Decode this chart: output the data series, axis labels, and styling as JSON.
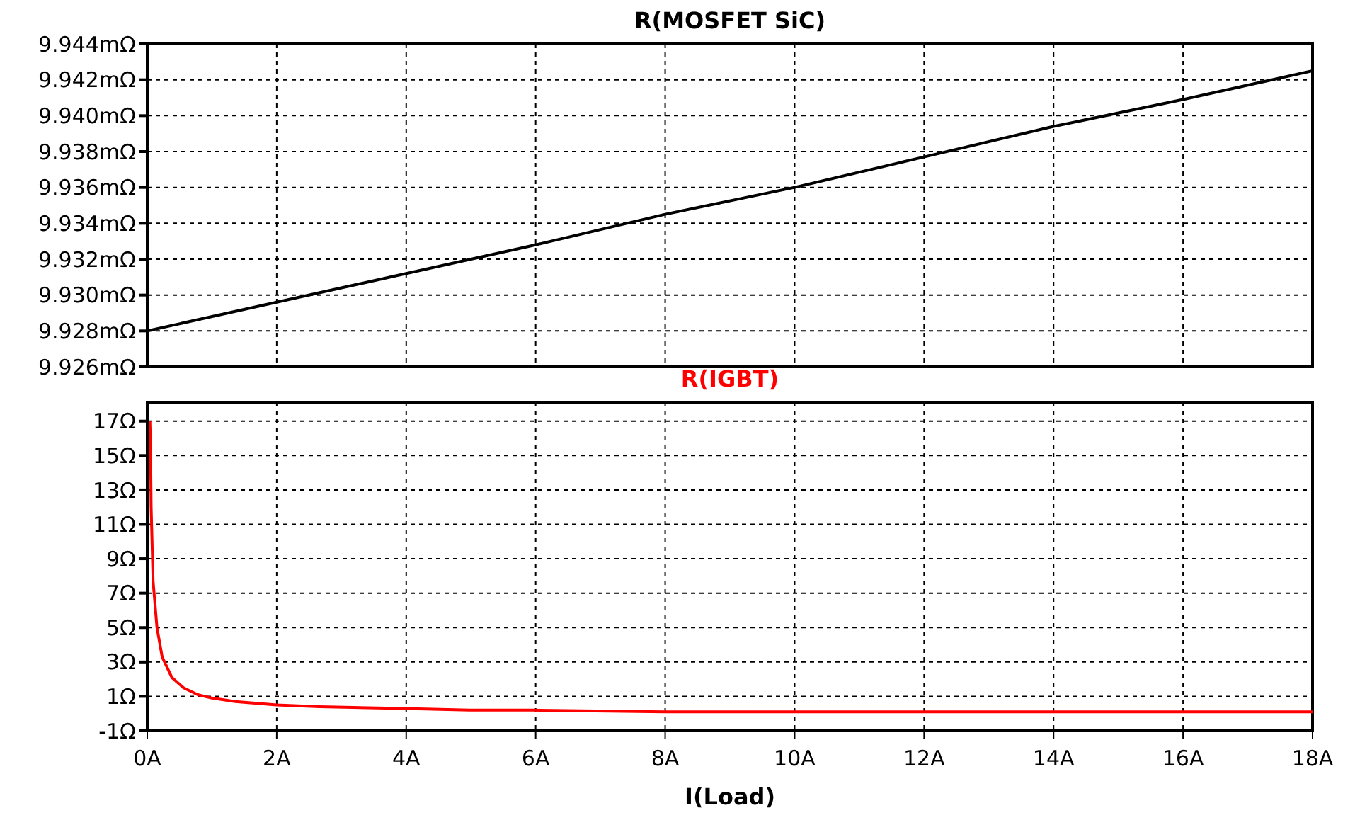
{
  "chart_data": [
    {
      "type": "line",
      "x": [
        0,
        2,
        4,
        6,
        8,
        10,
        12,
        14,
        16,
        18
      ],
      "series": [
        {
          "name": "R(MOSFET SiC)",
          "color": "#000000",
          "values": [
            9.928,
            9.9296,
            9.9312,
            9.9328,
            9.9345,
            9.936,
            9.9377,
            9.9394,
            9.9409,
            9.9425
          ]
        }
      ],
      "xlim": [
        0,
        18
      ],
      "xticks": [
        {
          "value": 0,
          "label": null
        },
        {
          "value": 2,
          "label": null
        },
        {
          "value": 4,
          "label": null
        },
        {
          "value": 6,
          "label": null
        },
        {
          "value": 8,
          "label": null
        },
        {
          "value": 10,
          "label": null
        },
        {
          "value": 12,
          "label": null
        },
        {
          "value": 14,
          "label": null
        },
        {
          "value": 16,
          "label": null
        },
        {
          "value": 18,
          "label": null
        }
      ],
      "ylim": [
        9.926,
        9.944
      ],
      "yticks": [
        {
          "value": 9.926,
          "label": "9.926mΩ"
        },
        {
          "value": 9.928,
          "label": "9.928mΩ"
        },
        {
          "value": 9.93,
          "label": "9.930mΩ"
        },
        {
          "value": 9.932,
          "label": "9.932mΩ"
        },
        {
          "value": 9.934,
          "label": "9.934mΩ"
        },
        {
          "value": 9.936,
          "label": "9.936mΩ"
        },
        {
          "value": 9.938,
          "label": "9.938mΩ"
        },
        {
          "value": 9.94,
          "label": "9.940mΩ"
        },
        {
          "value": 9.942,
          "label": "9.942mΩ"
        },
        {
          "value": 9.944,
          "label": "9.944mΩ"
        }
      ],
      "grid": true,
      "legend": "top",
      "tick_labels": "y"
    },
    {
      "type": "line",
      "x": [
        0.04,
        0.05,
        0.06,
        0.09,
        0.15,
        0.23,
        0.38,
        0.56,
        0.78,
        1.0,
        1.36,
        2,
        2.66,
        3.96,
        4.98,
        5.96,
        8,
        12,
        18
      ],
      "series": [
        {
          "name": "R(IGBT)",
          "color": "#ff0000",
          "values": [
            17,
            15.7,
            12,
            7.7,
            5,
            3.3,
            2.1,
            1.5,
            1.1,
            0.9,
            0.7,
            0.5,
            0.4,
            0.3,
            0.2,
            0.2,
            0.1,
            0.1,
            0.1
          ]
        }
      ],
      "xlabel": "I(Load)",
      "xlim": [
        0,
        18
      ],
      "xticks": [
        {
          "value": 0,
          "label": "0A"
        },
        {
          "value": 2,
          "label": "2A"
        },
        {
          "value": 4,
          "label": "4A"
        },
        {
          "value": 6,
          "label": "6A"
        },
        {
          "value": 8,
          "label": "8A"
        },
        {
          "value": 10,
          "label": "10A"
        },
        {
          "value": 12,
          "label": "12A"
        },
        {
          "value": 14,
          "label": "14A"
        },
        {
          "value": 16,
          "label": "16A"
        },
        {
          "value": 18,
          "label": "18A"
        }
      ],
      "ylim": [
        -1,
        18.1
      ],
      "yticks": [
        {
          "value": -1,
          "label": "-1Ω"
        },
        {
          "value": 1,
          "label": "1Ω"
        },
        {
          "value": 3,
          "label": "3Ω"
        },
        {
          "value": 5,
          "label": "5Ω"
        },
        {
          "value": 7,
          "label": "7Ω"
        },
        {
          "value": 9,
          "label": "9Ω"
        },
        {
          "value": 11,
          "label": "11Ω"
        },
        {
          "value": 13,
          "label": "13Ω"
        },
        {
          "value": 15,
          "label": "15Ω"
        },
        {
          "value": 17,
          "label": "17Ω"
        }
      ],
      "grid": true,
      "legend": "top"
    }
  ]
}
